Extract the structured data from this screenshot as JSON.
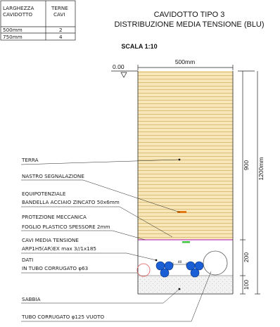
{
  "table": {
    "headers": [
      "LARGHEZZA\nCAVIDOTTO",
      "TERNE\nCAVI"
    ],
    "header_col1_line1": "LARGHEZZA",
    "header_col1_line2": "CAVIDOTTO",
    "header_col2_line1": "TERNE",
    "header_col2_line2": "CAVI",
    "rows": [
      {
        "width": "500mm",
        "count": "2"
      },
      {
        "width": "750mm",
        "count": "4"
      }
    ]
  },
  "title": {
    "line1": "CAVIDOTTO TIPO 3",
    "line2": "DISTRIBUZIONE MEDIA TENSIONE (BLU)",
    "scale": "SCALA 1:10"
  },
  "dimensions": {
    "level": "0.00",
    "width": "500mm",
    "d900": "900",
    "d200": "200",
    "d100": "100",
    "d1200": "1200mm",
    "cable_gap": "40"
  },
  "labels": [
    {
      "text": "TERRA"
    },
    {
      "text": "NASTRO SEGNALAZIONE"
    },
    {
      "text": "EQUIPOTENZIALE"
    },
    {
      "text": "BANDELLA ACCIAIO ZINCATO 50x6mm"
    },
    {
      "text": "PROTEZIONE MECCANICA"
    },
    {
      "text": "FOGLIO PLASTICO SPESSORE 2mm"
    },
    {
      "text": "CAVI MEDIA TENSIONE"
    },
    {
      "text": "ARP1H5(AR)EX max 3//1x185"
    },
    {
      "text": "DATI"
    },
    {
      "text": "IN TUBO CORRUGATO φ63"
    },
    {
      "text": "SABBIA"
    },
    {
      "text": "TUBO CORRUGATO φ125 VUOTO"
    }
  ],
  "colors": {
    "soil": "#f7e6b8",
    "soil_hatch": "#d6b46a",
    "sand": "#f2f2f2",
    "cable": "#1a5fd6",
    "marker_orange": "#e07a10",
    "marker_green": "#3cc43c",
    "plastic_sheet": "#c040c0",
    "data_tube": "#e05050"
  }
}
